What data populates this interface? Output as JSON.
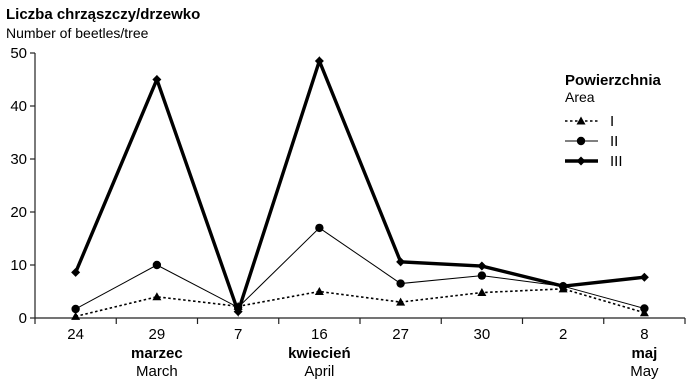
{
  "chart_data": {
    "type": "line",
    "title": "Liczba chrząszczy/drzewko",
    "subtitle": "Number of beetles/tree",
    "x": [
      "24",
      "29",
      "7",
      "16",
      "27",
      "30",
      "2",
      "8"
    ],
    "months": [
      {
        "label_pl": "marzec",
        "label_en": "March"
      },
      {
        "label_pl": "kwiecień",
        "label_en": "April"
      },
      {
        "label_pl": "maj",
        "label_en": "May"
      }
    ],
    "ylim": [
      0,
      50
    ],
    "yticks": [
      0,
      10,
      20,
      30,
      40,
      50
    ],
    "grid": false,
    "legend": {
      "title": "Powierzchnia",
      "subtitle": "Area",
      "placement": "top-right"
    },
    "series": [
      {
        "name": "I",
        "marker": "triangle",
        "line": "dotted",
        "color": "#000000",
        "values": [
          0.3,
          4.0,
          2.2,
          5.0,
          3.0,
          4.8,
          5.5,
          1.0
        ]
      },
      {
        "name": "II",
        "marker": "circle",
        "line": "thin",
        "color": "#000000",
        "values": [
          1.7,
          10.0,
          2.0,
          17.0,
          6.5,
          8.0,
          6.0,
          1.8
        ]
      },
      {
        "name": "III",
        "marker": "diamond",
        "line": "thick",
        "color": "#000000",
        "values": [
          8.6,
          45.0,
          1.2,
          48.5,
          10.6,
          9.8,
          6.0,
          7.7
        ]
      }
    ]
  }
}
